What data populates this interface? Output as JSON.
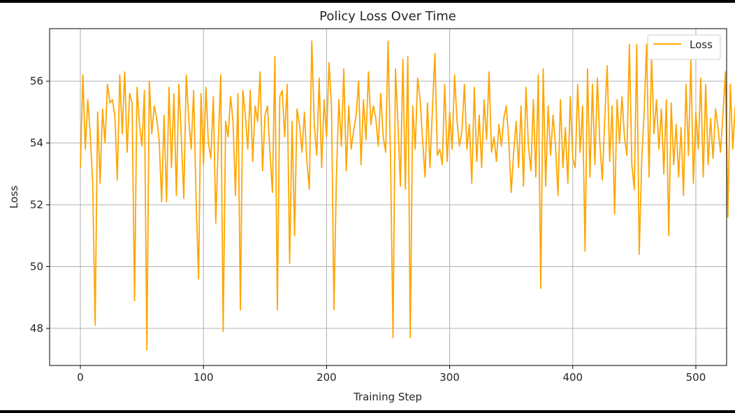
{
  "chart_data": {
    "type": "line",
    "title": "Policy Loss Over Time",
    "xlabel": "Training Step",
    "ylabel": "Loss",
    "xlim": [
      -25,
      525
    ],
    "ylim": [
      46.8,
      57.7
    ],
    "xticks": [
      0,
      100,
      200,
      300,
      400,
      500
    ],
    "yticks": [
      48,
      50,
      52,
      54,
      56
    ],
    "xtick_labels": [
      "0",
      "100",
      "200",
      "300",
      "400",
      "500"
    ],
    "ytick_labels": [
      "48",
      "50",
      "52",
      "54",
      "56"
    ],
    "grid": true,
    "legend": {
      "position": "top-right",
      "entries": [
        "Loss"
      ]
    },
    "series": [
      {
        "name": "Loss",
        "color": "#FFA500",
        "x_start": 0,
        "x_step": 2,
        "values": [
          53.2,
          56.2,
          53.8,
          55.4,
          54.3,
          52.7,
          48.1,
          55.0,
          52.7,
          55.1,
          54.0,
          55.9,
          55.3,
          55.4,
          54.9,
          52.8,
          56.2,
          54.3,
          56.3,
          53.7,
          55.6,
          55.3,
          48.9,
          55.8,
          54.6,
          53.9,
          55.7,
          47.3,
          56.0,
          54.3,
          55.2,
          54.8,
          54.1,
          52.1,
          54.9,
          52.1,
          55.8,
          53.2,
          55.6,
          52.3,
          55.9,
          54.2,
          52.2,
          56.2,
          54.8,
          53.8,
          55.7,
          52.2,
          49.6,
          55.6,
          53.3,
          55.8,
          54.0,
          53.5,
          55.5,
          51.4,
          54.0,
          56.2,
          47.9,
          54.7,
          54.2,
          55.5,
          54.7,
          52.3,
          55.6,
          48.6,
          55.7,
          54.9,
          53.8,
          55.7,
          53.4,
          55.2,
          54.7,
          56.3,
          53.1,
          54.9,
          55.2,
          53.7,
          52.4,
          56.8,
          48.6,
          55.5,
          55.7,
          54.2,
          55.9,
          50.1,
          54.7,
          51.0,
          55.1,
          54.6,
          53.7,
          55.0,
          53.4,
          52.5,
          57.3,
          54.6,
          53.6,
          56.1,
          53.2,
          55.4,
          54.2,
          56.6,
          55.2,
          48.6,
          52.9,
          55.4,
          53.9,
          56.4,
          53.1,
          55.2,
          53.8,
          54.4,
          54.9,
          56.0,
          53.3,
          55.4,
          54.1,
          56.3,
          54.6,
          55.2,
          54.8,
          53.9,
          55.6,
          54.2,
          53.7,
          57.3,
          53.4,
          47.7,
          56.4,
          54.6,
          52.6,
          56.7,
          52.5,
          56.8,
          47.7,
          55.2,
          53.8,
          56.1,
          55.4,
          54.1,
          52.9,
          55.3,
          53.2,
          55.1,
          56.9,
          53.6,
          53.8,
          53.3,
          55.9,
          53.4,
          55.0,
          53.8,
          56.2,
          54.7,
          53.9,
          54.4,
          55.9,
          53.8,
          54.6,
          52.7,
          55.8,
          53.4,
          54.9,
          53.2,
          55.4,
          54.1,
          56.3,
          53.7,
          54.2,
          53.4,
          54.6,
          53.9,
          54.8,
          55.2,
          54.1,
          52.4,
          53.7,
          54.7,
          53.2,
          55.2,
          52.6,
          55.8,
          53.9,
          53.1,
          55.4,
          52.9,
          56.2,
          49.3,
          56.4,
          52.6,
          55.2,
          53.6,
          54.9,
          53.9,
          52.3,
          55.4,
          53.2,
          54.5,
          52.7,
          55.5,
          53.5,
          53.2,
          55.9,
          53.7,
          55.2,
          50.5,
          56.4,
          52.9,
          55.9,
          53.3,
          56.1,
          54.0,
          52.8,
          54.8,
          56.5,
          53.4,
          55.2,
          51.7,
          55.4,
          54.0,
          55.5,
          54.2,
          53.6,
          57.2,
          53.3,
          52.5,
          57.2,
          50.4,
          53.4,
          55.0,
          57.2,
          52.9,
          56.8,
          54.3,
          55.4,
          53.8,
          55.1,
          53.0,
          55.4,
          51.0,
          55.3,
          53.3,
          54.6,
          52.9,
          54.5,
          52.3,
          55.9,
          53.6,
          56.7,
          52.7,
          55.0,
          53.8,
          56.1,
          52.9,
          55.9,
          53.3,
          54.8,
          53.5,
          55.1,
          54.5,
          53.7,
          54.9,
          56.3,
          51.6,
          55.9,
          53.8,
          55.2
        ]
      }
    ]
  }
}
